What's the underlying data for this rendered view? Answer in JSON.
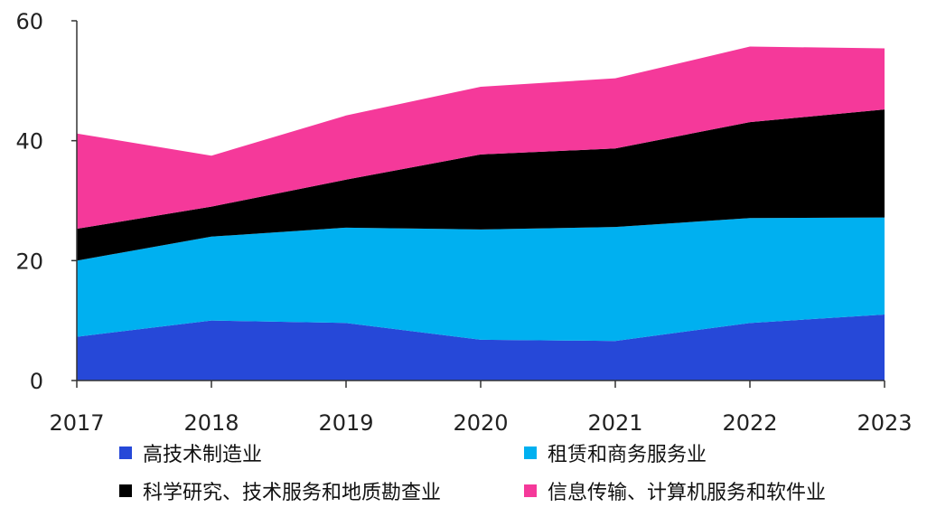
{
  "chart_data": {
    "type": "area",
    "stacked": true,
    "x": [
      "2017",
      "2018",
      "2019",
      "2020",
      "2021",
      "2022",
      "2023"
    ],
    "series": [
      {
        "name": "高技术制造业",
        "values": [
          7.3,
          10.0,
          9.6,
          6.8,
          6.6,
          9.6,
          11.0
        ],
        "color": "#2648d8"
      },
      {
        "name": "租赁和商务服务业",
        "values": [
          12.7,
          14.0,
          15.9,
          18.4,
          19.0,
          17.5,
          16.2
        ],
        "color": "#00b0f0"
      },
      {
        "name": "科学研究、技术服务和地质勘查业",
        "values": [
          5.3,
          5.0,
          8.0,
          12.5,
          13.1,
          16.0,
          18.0
        ],
        "color": "#000000"
      },
      {
        "name": "信息传输、计算机服务和软件业",
        "values": [
          15.9,
          8.5,
          10.7,
          11.3,
          11.7,
          12.6,
          10.2
        ],
        "color": "#f5399a"
      }
    ],
    "ylim": [
      0,
      60
    ],
    "yticks": [
      "0",
      "20",
      "40",
      "60"
    ],
    "grid": false,
    "legend_placement": "bottom",
    "title": "",
    "xlabel": "",
    "ylabel": ""
  }
}
